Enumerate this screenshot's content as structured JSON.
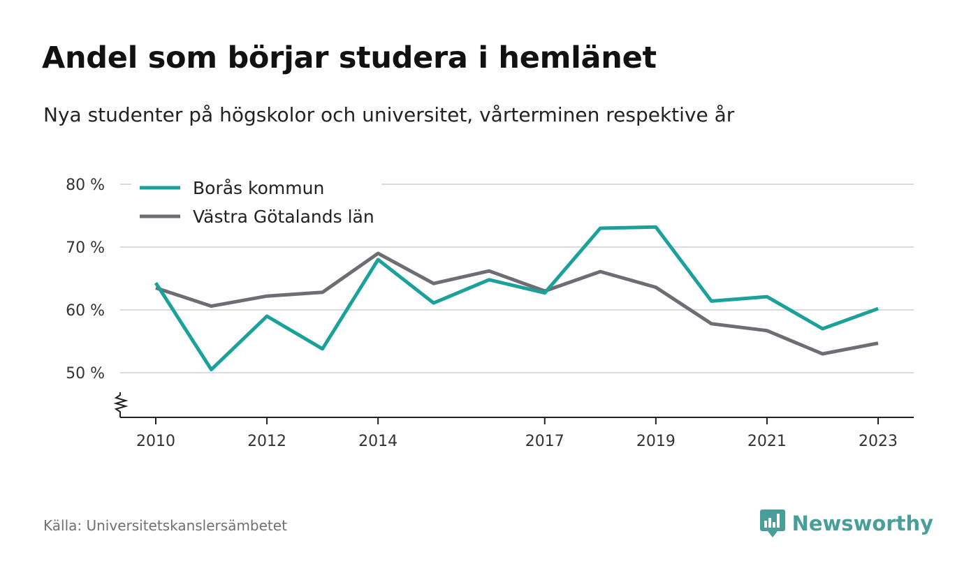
{
  "header": {
    "title": "Andel som börjar studera i hemlänet",
    "subtitle": "Nya studenter på högskolor och universitet, vårterminen respektive år"
  },
  "footer": {
    "source": "Källa: Universitetskanslersämbetet",
    "brand": "Newsworthy"
  },
  "colors": {
    "boras": "#1aa19a",
    "vgl": "#6e6d75",
    "grid": "#dcdcdc",
    "brand": "#4a9e9a"
  },
  "chart_data": {
    "type": "line",
    "title": "Andel som börjar studera i hemlänet",
    "subtitle": "Nya studenter på högskolor och universitet, vårterminen respektive år",
    "x": [
      2010,
      2011,
      2012,
      2013,
      2014,
      2015,
      2016,
      2017,
      2018,
      2019,
      2020,
      2021,
      2022,
      2023
    ],
    "x_ticks": [
      "2010",
      "2012",
      "2014",
      "2017",
      "2019",
      "2021",
      "2023"
    ],
    "y_ticks": [
      "50 %",
      "60 %",
      "70 %",
      "80 %"
    ],
    "ylim": [
      43,
      80
    ],
    "y_axis_break": true,
    "grid": true,
    "legend_position": "top-left",
    "series": [
      {
        "name": "Borås kommun",
        "color": "#1aa19a",
        "values": [
          64.3,
          50.5,
          59.0,
          53.8,
          68.0,
          61.1,
          64.8,
          62.7,
          73.0,
          73.2,
          61.4,
          62.1,
          57.0,
          60.2
        ]
      },
      {
        "name": "Västra Götalands län",
        "color": "#6e6d75",
        "values": [
          63.5,
          60.6,
          62.2,
          62.8,
          69.0,
          64.2,
          66.2,
          63.0,
          66.1,
          63.6,
          57.8,
          56.7,
          53.0,
          54.7
        ]
      }
    ]
  }
}
